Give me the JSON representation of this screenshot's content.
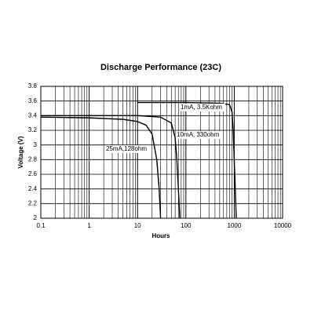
{
  "chart_data": {
    "type": "line",
    "title": "Discharge Performance (23C)",
    "xlabel": "Hours",
    "ylabel": "Voltage (V)",
    "xscale": "log",
    "xlim": [
      0.1,
      10000
    ],
    "xticks": [
      0.1,
      1,
      10,
      100,
      1000,
      10000
    ],
    "ylim": [
      2,
      3.8
    ],
    "yticks": [
      2,
      2.2,
      2.4,
      2.6,
      2.8,
      3,
      3.2,
      3.4,
      3.6,
      3.8
    ],
    "grid": true,
    "minor_grid": true,
    "series": [
      {
        "name": "25mA,128ohm",
        "color": "#000000",
        "x": [
          0.1,
          1,
          5,
          10,
          15,
          20,
          25,
          28,
          30
        ],
        "values": [
          3.38,
          3.37,
          3.35,
          3.32,
          3.27,
          3.15,
          2.8,
          2.4,
          2.0
        ]
      },
      {
        "name": "10mA, 330ohm",
        "color": "#000000",
        "x": [
          0.1,
          1,
          10,
          30,
          50,
          60,
          65,
          70,
          75
        ],
        "values": [
          3.4,
          3.4,
          3.4,
          3.38,
          3.3,
          3.1,
          2.8,
          2.4,
          2.0
        ]
      },
      {
        "name": "1mA, 3.5Kohm",
        "color": "#000000",
        "x": [
          10,
          100,
          500,
          800,
          900,
          950,
          1000,
          1050,
          1100
        ],
        "values": [
          3.58,
          3.58,
          3.57,
          3.55,
          3.45,
          3.2,
          2.8,
          2.4,
          2.0
        ]
      }
    ]
  }
}
